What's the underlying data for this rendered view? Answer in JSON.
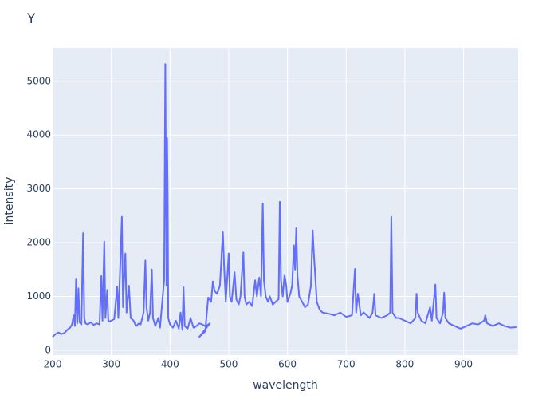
{
  "chart_data": {
    "type": "line",
    "title": "Y",
    "xlabel": "wavelength",
    "ylabel": "intensity",
    "color": "#636efa",
    "grid": true,
    "xlim": [
      200,
      993
    ],
    "ylim": [
      -90,
      5620
    ],
    "xticks": [
      200,
      300,
      400,
      500,
      600,
      700,
      800,
      900
    ],
    "yticks": [
      0,
      1000,
      2000,
      3000,
      4000,
      5000
    ],
    "x": [
      200,
      205,
      210,
      215,
      220,
      225,
      230,
      233,
      236,
      238,
      240,
      242,
      244,
      246,
      249,
      252,
      254,
      256,
      260,
      265,
      270,
      275,
      280,
      283,
      285,
      288,
      290,
      293,
      295,
      300,
      305,
      310,
      312,
      315,
      318,
      320,
      322,
      324,
      326,
      330,
      333,
      338,
      342,
      347,
      350,
      355,
      358,
      360,
      363,
      366,
      369,
      371,
      375,
      380,
      383,
      386,
      390,
      392,
      394,
      395,
      396,
      397,
      400,
      405,
      410,
      415,
      418,
      421,
      423,
      425,
      430,
      435,
      440,
      445,
      450,
      455,
      460,
      465,
      468,
      450,
      455,
      460,
      465,
      470,
      473,
      476,
      480,
      485,
      488,
      490,
      492,
      495,
      500,
      502,
      505,
      510,
      513,
      517,
      520,
      525,
      527,
      530,
      535,
      540,
      545,
      548,
      552,
      555,
      558,
      560,
      563,
      567,
      570,
      575,
      580,
      585,
      587,
      589,
      592,
      595,
      598,
      600,
      605,
      608,
      611,
      613,
      615,
      617,
      620,
      625,
      630,
      635,
      640,
      643,
      645,
      647,
      650,
      655,
      660,
      670,
      680,
      690,
      700,
      710,
      715,
      717,
      720,
      725,
      730,
      740,
      745,
      748,
      750,
      760,
      770,
      775,
      777,
      779,
      785,
      790,
      800,
      810,
      818,
      820,
      822,
      828,
      835,
      843,
      846,
      852,
      854,
      860,
      865,
      867,
      869,
      875,
      885,
      895,
      905,
      915,
      925,
      935,
      937,
      940,
      950,
      960,
      970,
      980,
      990
    ],
    "values": [
      250,
      300,
      330,
      300,
      320,
      380,
      420,
      480,
      650,
      450,
      1330,
      500,
      1150,
      520,
      480,
      2180,
      600,
      500,
      480,
      520,
      470,
      500,
      480,
      1380,
      550,
      2020,
      600,
      1120,
      530,
      550,
      580,
      1180,
      600,
      1500,
      2480,
      800,
      1380,
      1800,
      700,
      1200,
      600,
      550,
      450,
      500,
      480,
      700,
      1670,
      800,
      550,
      700,
      1500,
      600,
      450,
      600,
      420,
      800,
      1300,
      5320,
      1200,
      3940,
      2900,
      600,
      480,
      420,
      550,
      400,
      700,
      380,
      1170,
      450,
      400,
      600,
      420,
      450,
      500,
      480,
      450,
      480,
      500,
      250,
      300,
      350,
      980,
      900,
      1280,
      1100,
      1050,
      1200,
      1800,
      2200,
      1600,
      900,
      1800,
      1000,
      900,
      1450,
      950,
      850,
      1000,
      1820,
      1000,
      850,
      900,
      820,
      1300,
      1000,
      1350,
      1000,
      2730,
      1300,
      1000,
      900,
      1000,
      850,
      900,
      950,
      2760,
      1300,
      1000,
      1400,
      1200,
      900,
      1050,
      1200,
      1950,
      1500,
      2270,
      1400,
      1000,
      900,
      800,
      850,
      1200,
      2230,
      1800,
      1450,
      900,
      750,
      700,
      680,
      650,
      700,
      620,
      650,
      1510,
      700,
      1050,
      650,
      700,
      600,
      700,
      1050,
      650,
      600,
      650,
      700,
      2480,
      700,
      600,
      600,
      550,
      500,
      600,
      1050,
      700,
      550,
      500,
      800,
      550,
      1220,
      600,
      500,
      700,
      1070,
      600,
      500,
      450,
      400,
      450,
      500,
      480,
      550,
      650,
      500,
      450,
      500,
      450,
      420,
      430
    ]
  }
}
